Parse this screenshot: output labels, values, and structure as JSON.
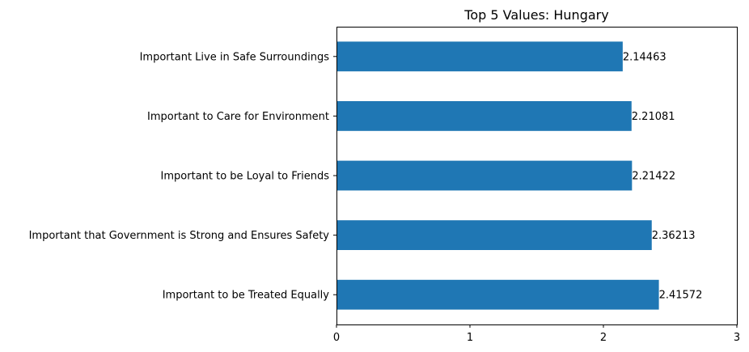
{
  "chart_data": {
    "type": "bar",
    "orientation": "horizontal",
    "title": "Top 5 Values: Hungary",
    "xlabel": "",
    "ylabel": "",
    "categories": [
      "Important Live in Safe Surroundings",
      "Important to Care for Environment",
      "Important to be Loyal to Friends",
      "Important that Government is Strong and Ensures Safety",
      "Important to be Treated Equally"
    ],
    "values": [
      2.14463,
      2.21081,
      2.21422,
      2.36213,
      2.41572
    ],
    "data_labels": [
      "2.14463",
      "2.21081",
      "2.21422",
      "2.36213",
      "2.41572"
    ],
    "xlim": [
      0,
      3
    ],
    "xticks": [
      0,
      1,
      2,
      3
    ],
    "xtick_labels": [
      "0",
      "1",
      "2",
      "3"
    ],
    "grid": false,
    "bar_color": "#1f77b4"
  }
}
